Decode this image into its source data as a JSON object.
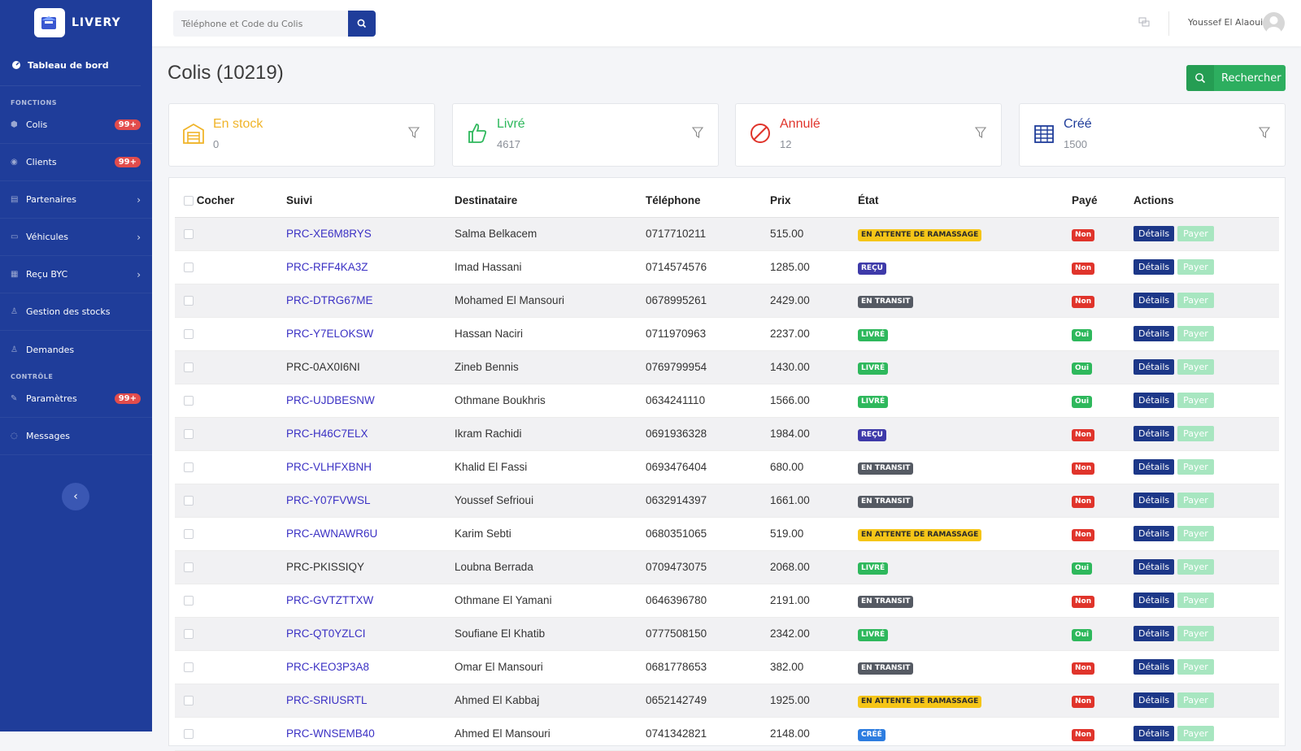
{
  "app": {
    "name": "LIVERY"
  },
  "sidebar": {
    "dashboard": "Tableau de bord",
    "section_functions": "FONCTIONS",
    "section_control": "CONTRÔLE",
    "items": [
      {
        "label": "Colis",
        "badge": "99+"
      },
      {
        "label": "Clients",
        "badge": "99+"
      },
      {
        "label": "Partenaires"
      },
      {
        "label": "Véhicules"
      },
      {
        "label": "Reçu BYC"
      },
      {
        "label": "Gestion des stocks"
      },
      {
        "label": "Demandes"
      }
    ],
    "control_items": [
      {
        "label": "Paramètres",
        "badge": "99+"
      },
      {
        "label": "Messages"
      }
    ]
  },
  "topbar": {
    "search_placeholder": "Téléphone et Code du Colis",
    "user_name": "Youssef El Alaoui"
  },
  "page": {
    "title": "Colis (10219)",
    "search_button": "Rechercher"
  },
  "stats": [
    {
      "label": "En stock",
      "value": "0",
      "color": "#f0b429"
    },
    {
      "label": "Livré",
      "value": "4617",
      "color": "#2eb85c"
    },
    {
      "label": "Annulé",
      "value": "12",
      "color": "#e0342b"
    },
    {
      "label": "Créé",
      "value": "1500",
      "color": "#1f3d9a"
    }
  ],
  "table": {
    "headers": [
      "Cocher",
      "Suivi",
      "Destinataire",
      "Téléphone",
      "Prix",
      "État",
      "Payé",
      "Actions"
    ],
    "detail_label": "Détails",
    "pay_label": "Payer",
    "rows": [
      {
        "suivi": "PRC-XE6M8RYS",
        "dest": "Salma Belkacem",
        "tel": "0717710211",
        "prix": "515.00",
        "etat": "EN ATTENTE DE RAMASSAGE",
        "paye": "Non"
      },
      {
        "suivi": "PRC-RFF4KA3Z",
        "dest": "Imad Hassani",
        "tel": "0714574576",
        "prix": "1285.00",
        "etat": "REÇU",
        "paye": "Non"
      },
      {
        "suivi": "PRC-DTRG67ME",
        "dest": "Mohamed El Mansouri",
        "tel": "0678995261",
        "prix": "2429.00",
        "etat": "EN TRANSIT",
        "paye": "Non"
      },
      {
        "suivi": "PRC-Y7ELOKSW",
        "dest": "Hassan Naciri",
        "tel": "0711970963",
        "prix": "2237.00",
        "etat": "LIVRÉ",
        "paye": "Oui"
      },
      {
        "suivi": "PRC-0AX0I6NI",
        "dest": "Zineb Bennis",
        "tel": "0769799954",
        "prix": "1430.00",
        "etat": "LIVRÉ",
        "paye": "Oui"
      },
      {
        "suivi": "PRC-UJDBESNW",
        "dest": "Othmane Boukhris",
        "tel": "0634241110",
        "prix": "1566.00",
        "etat": "LIVRÉ",
        "paye": "Oui"
      },
      {
        "suivi": "PRC-H46C7ELX",
        "dest": "Ikram Rachidi",
        "tel": "0691936328",
        "prix": "1984.00",
        "etat": "REÇU",
        "paye": "Non"
      },
      {
        "suivi": "PRC-VLHFXBNH",
        "dest": "Khalid El Fassi",
        "tel": "0693476404",
        "prix": "680.00",
        "etat": "EN TRANSIT",
        "paye": "Non"
      },
      {
        "suivi": "PRC-Y07FVWSL",
        "dest": "Youssef Sefrioui",
        "tel": "0632914397",
        "prix": "1661.00",
        "etat": "EN TRANSIT",
        "paye": "Non"
      },
      {
        "suivi": "PRC-AWNAWR6U",
        "dest": "Karim Sebti",
        "tel": "0680351065",
        "prix": "519.00",
        "etat": "EN ATTENTE DE RAMASSAGE",
        "paye": "Non"
      },
      {
        "suivi": "PRC-PKISSIQY",
        "dest": "Loubna Berrada",
        "tel": "0709473075",
        "prix": "2068.00",
        "etat": "LIVRÉ",
        "paye": "Oui"
      },
      {
        "suivi": "PRC-GVTZTTXW",
        "dest": "Othmane El Yamani",
        "tel": "0646396780",
        "prix": "2191.00",
        "etat": "EN TRANSIT",
        "paye": "Non"
      },
      {
        "suivi": "PRC-QT0YZLCI",
        "dest": "Soufiane El Khatib",
        "tel": "0777508150",
        "prix": "2342.00",
        "etat": "LIVRÉ",
        "paye": "Oui"
      },
      {
        "suivi": "PRC-KEO3P3A8",
        "dest": "Omar El Mansouri",
        "tel": "0681778653",
        "prix": "382.00",
        "etat": "EN TRANSIT",
        "paye": "Non"
      },
      {
        "suivi": "PRC-SRIUSRTL",
        "dest": "Ahmed El Kabbaj",
        "tel": "0652142749",
        "prix": "1925.00",
        "etat": "EN ATTENTE DE RAMASSAGE",
        "paye": "Non"
      },
      {
        "suivi": "PRC-WNSEMB40",
        "dest": "Ahmed El Mansouri",
        "tel": "0741342821",
        "prix": "2148.00",
        "etat": "CRÉÉ",
        "paye": "Non"
      }
    ]
  }
}
